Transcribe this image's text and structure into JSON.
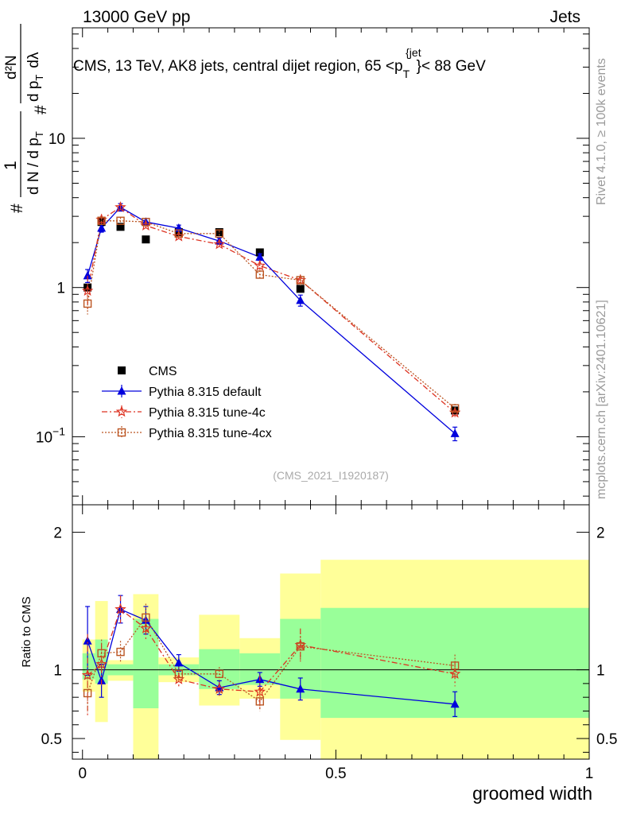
{
  "header": {
    "left": "13000 GeV pp",
    "right": "Jets"
  },
  "side_text": {
    "rivet": "Rivet 4.1.0, ≥ 100k events",
    "mcplots": "mcplots.cern.ch [arXiv:2401.10621]"
  },
  "colors": {
    "cms": "#000000",
    "default": "#0000dd",
    "tune4c": "#dd3322",
    "tune4cx": "#bb5522",
    "band_inner": "#99ff99",
    "band_outer": "#ffff99"
  },
  "chart_data": [
    {
      "type": "line",
      "panel": "main",
      "title": "CMS, 13 TeV, AK8 jets, central dijet region, 65 <p_T^{jet}< 88 GeV",
      "title_parts": {
        "pre": "CMS, 13 TeV, AK8 jets, central dijet region, 65 <p",
        "sub": "T",
        "sup": "{jet",
        "post": "}< 88 GeV"
      },
      "ylabel": "# 1/(dN/dp_T) # d²N/(dp_T dλ)",
      "ylabel_parts": {
        "hash": "#",
        "one": "1",
        "dn_dpt": "d N / d p",
        "t": "T",
        "d2n": "d²N",
        "dpt_dl": "d p",
        "dl": "dλ"
      },
      "yscale": "log",
      "ylim": [
        0.035,
        55
      ],
      "xlim": [
        -0.02,
        1.0
      ],
      "yticks": [
        {
          "v": 0.1,
          "base": "10",
          "exp": "−1"
        },
        {
          "v": 1,
          "label": "1"
        },
        {
          "v": 10,
          "label": "10"
        }
      ],
      "watermark": "(CMS_2021_I1920187)",
      "legend_position": "center-left",
      "x_bins": [
        0.01,
        0.0375,
        0.075,
        0.125,
        0.19,
        0.27,
        0.35,
        0.43,
        0.735
      ],
      "series": [
        {
          "name": "CMS",
          "style": "square-filled",
          "y": [
            1.0,
            2.75,
            2.55,
            2.1,
            2.35,
            2.35,
            1.72,
            0.98,
            0.15
          ]
        },
        {
          "name": "Pythia 8.315 default",
          "style": "triangle-line",
          "y": [
            1.2,
            2.5,
            3.45,
            2.75,
            2.5,
            2.05,
            1.6,
            0.82,
            0.105
          ],
          "yerr": [
            0.12,
            0.15,
            0.2,
            0.15,
            0.12,
            0.1,
            0.08,
            0.07,
            0.011
          ]
        },
        {
          "name": "Pythia 8.315 tune-4c",
          "style": "star-dashdot",
          "y": [
            0.95,
            2.85,
            3.45,
            2.6,
            2.2,
            1.95,
            1.4,
            1.12,
            0.145
          ],
          "yerr": [
            0.25,
            0.25,
            0.22,
            0.15,
            0.1,
            0.1,
            0.12,
            0.1,
            0.012
          ]
        },
        {
          "name": "Pythia 8.315 tune-4cx",
          "style": "square-open-dotted",
          "y": [
            0.78,
            2.8,
            2.8,
            2.75,
            2.3,
            2.3,
            1.22,
            1.12,
            0.155
          ],
          "yerr": [
            0.12,
            0.15,
            0.15,
            0.12,
            0.1,
            0.1,
            0.08,
            0.09,
            0.011
          ]
        }
      ]
    },
    {
      "type": "line",
      "panel": "ratio",
      "xlabel": "groomed width",
      "ylabel": "Ratio to CMS",
      "xlim": [
        -0.02,
        1.0
      ],
      "ylim": [
        0.35,
        2.2
      ],
      "xticks": [
        {
          "v": 0,
          "label": "0"
        },
        {
          "v": 0.5,
          "label": "0.5"
        },
        {
          "v": 1,
          "label": "1"
        }
      ],
      "yticks": [
        {
          "v": 0.5,
          "label": "0.5"
        },
        {
          "v": 1,
          "label": "1"
        },
        {
          "v": 2,
          "label": "2"
        }
      ],
      "bands": [
        {
          "x0": 0.0,
          "x1": 0.025,
          "inner": [
            0.93,
            1.12
          ],
          "outer": [
            0.84,
            1.22
          ]
        },
        {
          "x0": 0.025,
          "x1": 0.05,
          "inner": [
            0.9,
            1.22
          ],
          "outer": [
            0.62,
            1.5
          ]
        },
        {
          "x0": 0.05,
          "x1": 0.1,
          "inner": [
            0.96,
            1.04
          ],
          "outer": [
            0.92,
            1.07
          ]
        },
        {
          "x0": 0.1,
          "x1": 0.15,
          "inner": [
            0.72,
            1.37
          ],
          "outer": [
            0.35,
            1.55
          ]
        },
        {
          "x0": 0.15,
          "x1": 0.23,
          "inner": [
            0.96,
            1.04
          ],
          "outer": [
            0.91,
            1.09
          ]
        },
        {
          "x0": 0.23,
          "x1": 0.31,
          "inner": [
            0.86,
            1.15
          ],
          "outer": [
            0.74,
            1.4
          ]
        },
        {
          "x0": 0.31,
          "x1": 0.39,
          "inner": [
            0.89,
            1.12
          ],
          "outer": [
            0.79,
            1.23
          ]
        },
        {
          "x0": 0.39,
          "x1": 0.47,
          "inner": [
            0.79,
            1.37
          ],
          "outer": [
            0.49,
            1.7
          ]
        },
        {
          "x0": 0.47,
          "x1": 1.0,
          "inner": [
            0.65,
            1.45
          ],
          "outer": [
            0.35,
            1.8
          ]
        }
      ],
      "series": [
        {
          "name": "Pythia 8.315 default",
          "y": [
            1.21,
            0.92,
            1.44,
            1.36,
            1.05,
            0.87,
            0.93,
            0.86,
            0.75
          ],
          "yerr": [
            0.25,
            0.12,
            0.1,
            0.1,
            0.06,
            0.05,
            0.05,
            0.08,
            0.09
          ]
        },
        {
          "name": "Pythia 8.315 tune-4c",
          "y": [
            0.96,
            1.04,
            1.44,
            1.3,
            0.93,
            0.86,
            0.84,
            1.18,
            0.97
          ],
          "yerr": [
            0.3,
            0.15,
            0.1,
            0.08,
            0.05,
            0.05,
            0.12,
            0.12,
            0.09
          ]
        },
        {
          "name": "Pythia 8.315 tune-4cx",
          "y": [
            0.83,
            1.12,
            1.13,
            1.38,
            0.97,
            0.97,
            0.77,
            1.17,
            1.03
          ],
          "yerr": [
            0.14,
            0.1,
            0.08,
            0.1,
            0.05,
            0.05,
            0.07,
            0.1,
            0.08
          ]
        }
      ]
    }
  ]
}
